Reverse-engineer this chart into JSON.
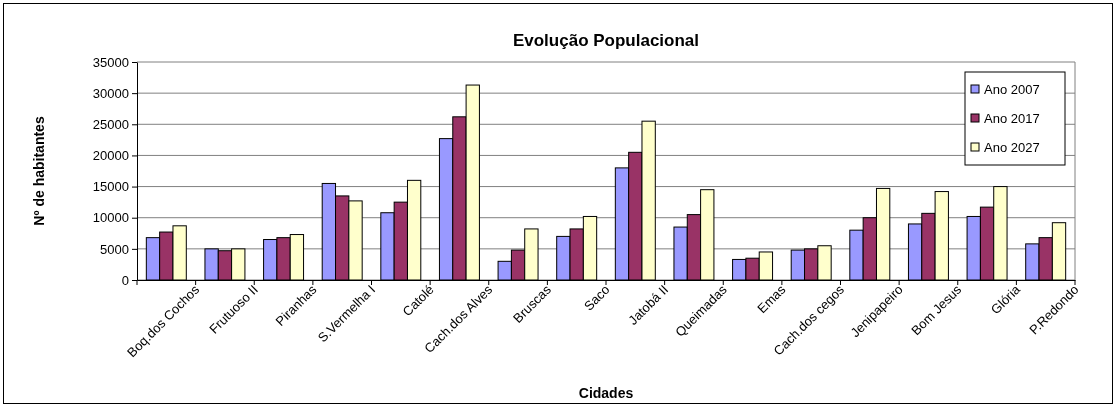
{
  "chart_data": {
    "type": "bar",
    "title": "Evolução Populacional",
    "xlabel": "Cidades",
    "ylabel": "Nº de habitantes",
    "categories": [
      "Boq.dos Cochos",
      "Frutuoso II",
      "Piranhas",
      "S.Vermelha I",
      "Catolé",
      "Cach.dos Alves",
      "Bruscas",
      "Saco",
      "Jatobá II",
      "Queimadas",
      "Emas",
      "Cach.dos cegos",
      "Jenipapeiro",
      "Bom Jesus",
      "Glória",
      "P.Redondo"
    ],
    "series": [
      {
        "name": "Ano 2007",
        "color": "#9999ff",
        "values": [
          6800,
          5000,
          6500,
          15500,
          10800,
          22700,
          3000,
          7000,
          18000,
          8500,
          3300,
          4800,
          8000,
          9000,
          10200,
          5800
        ]
      },
      {
        "name": "Ano 2017",
        "color": "#993366",
        "values": [
          7700,
          4700,
          6800,
          13500,
          12500,
          26200,
          4800,
          8200,
          20500,
          10500,
          3500,
          5000,
          10000,
          10700,
          11700,
          6800
        ]
      },
      {
        "name": "Ano 2027",
        "color": "#ffffcc",
        "values": [
          8700,
          5000,
          7300,
          12700,
          16000,
          31300,
          8200,
          10200,
          25500,
          14500,
          4500,
          5500,
          14700,
          14200,
          15000,
          9200
        ]
      }
    ],
    "ylim": [
      0,
      35000
    ],
    "yticks": [
      0,
      5000,
      10000,
      15000,
      20000,
      25000,
      30000,
      35000
    ],
    "grid": "y",
    "legend": "top right"
  }
}
